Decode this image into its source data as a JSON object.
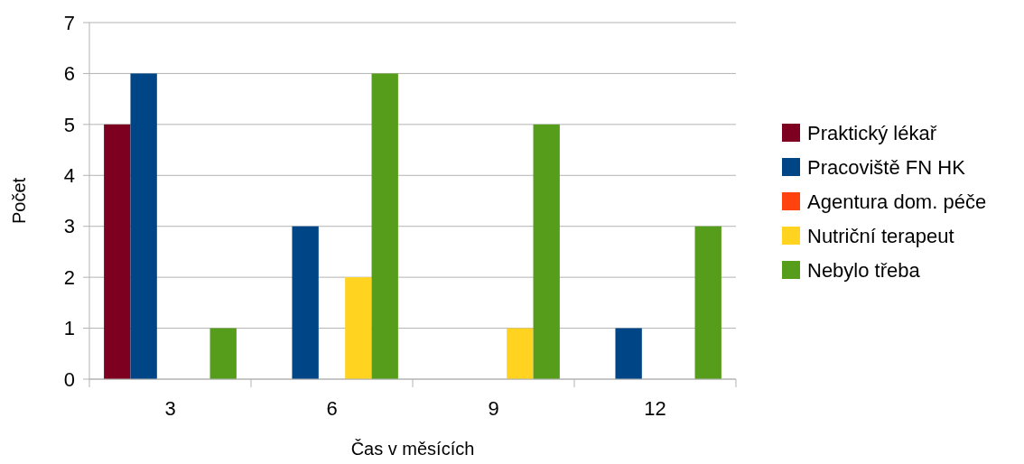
{
  "chart_data": {
    "type": "bar",
    "xlabel": "Čas v měsících",
    "ylabel": "Počet",
    "categories": [
      "3",
      "6",
      "9",
      "12"
    ],
    "series": [
      {
        "name": "Praktický lékař",
        "color": "#7e0021",
        "values": [
          5,
          0,
          0,
          0
        ]
      },
      {
        "name": "Pracoviště FN HK",
        "color": "#004586",
        "values": [
          6,
          3,
          0,
          1
        ]
      },
      {
        "name": "Agentura dom. péče",
        "color": "#ff420e",
        "values": [
          0,
          0,
          0,
          0
        ]
      },
      {
        "name": "Nutriční terapeut",
        "color": "#ffd320",
        "values": [
          0,
          2,
          1,
          0
        ]
      },
      {
        "name": "Nebylo třeba",
        "color": "#579d1c",
        "values": [
          1,
          6,
          5,
          3
        ]
      }
    ],
    "ylim": [
      0,
      7
    ],
    "yticks": [
      0,
      1,
      2,
      3,
      4,
      5,
      6,
      7
    ],
    "grid": "y",
    "legend": "right"
  }
}
